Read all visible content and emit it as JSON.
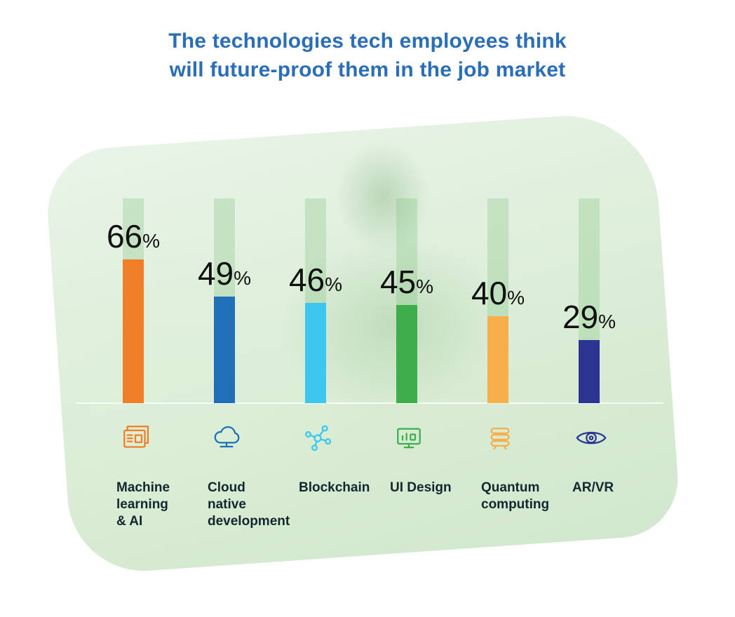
{
  "title": {
    "line1": "The technologies tech employees think",
    "line2": "will future-proof them in the job market"
  },
  "chart_data": {
    "type": "bar",
    "title": "The technologies tech employees think will future-proof them in the job market",
    "unit": "%",
    "categories": [
      "Machine learning & AI",
      "Cloud native development",
      "Blockchain",
      "UI Design",
      "Quantum computing",
      "AR/VR"
    ],
    "values": [
      66,
      49,
      46,
      45,
      40,
      29
    ],
    "ylim": [
      0,
      70
    ],
    "grid": false,
    "legend": "none",
    "bars": [
      {
        "label_lines": [
          "Machine",
          "learning",
          "& AI"
        ],
        "value": 66,
        "color": "#F07E26",
        "icon": "machine-learning-icon"
      },
      {
        "label_lines": [
          "Cloud",
          "native",
          "development"
        ],
        "value": 49,
        "color": "#1F70B8",
        "icon": "cloud-icon"
      },
      {
        "label_lines": [
          "Blockchain"
        ],
        "value": 46,
        "color": "#3BC7F0",
        "icon": "blockchain-icon"
      },
      {
        "label_lines": [
          "UI Design"
        ],
        "value": 45,
        "color": "#3EAE4C",
        "icon": "ui-design-icon"
      },
      {
        "label_lines": [
          "Quantum",
          "computing"
        ],
        "value": 40,
        "color": "#F8AE4B",
        "icon": "quantum-computing-icon"
      },
      {
        "label_lines": [
          "AR/VR"
        ],
        "value": 29,
        "color": "#2C3391",
        "icon": "ar-vr-icon"
      }
    ],
    "colors": {
      "title_text": "#2A6DB9",
      "value_text": "#101010",
      "label_text": "#16262F",
      "panel_bg": "#DCEEDA",
      "track": "rgba(120,190,120,0.28)",
      "divider": "rgba(255,255,255,0.8)"
    }
  }
}
